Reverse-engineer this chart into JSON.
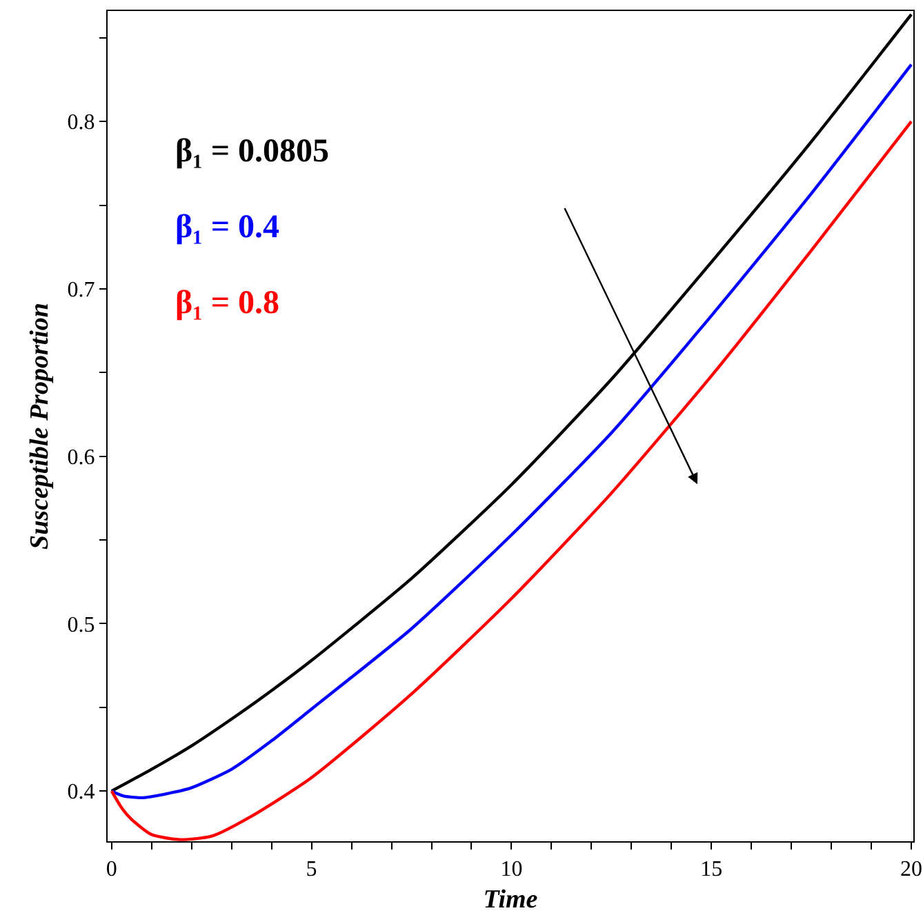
{
  "chart_data": {
    "type": "line",
    "xlabel": "Time",
    "ylabel": "Susceptible Proportion",
    "xlim": [
      -0.1,
      20.05
    ],
    "ylim": [
      0.37,
      0.866
    ],
    "xticks": [
      0,
      {
        "value": 1,
        "label": null
      },
      {
        "value": 2,
        "label": null
      },
      {
        "value": 3,
        "label": null
      },
      {
        "value": 4,
        "label": null
      },
      5,
      {
        "value": 6,
        "label": null
      },
      {
        "value": 7,
        "label": null
      },
      {
        "value": 8,
        "label": null
      },
      {
        "value": 9,
        "label": null
      },
      10,
      {
        "value": 11,
        "label": null
      },
      {
        "value": 12,
        "label": null
      },
      {
        "value": 13,
        "label": null
      },
      {
        "value": 14,
        "label": null
      },
      15,
      {
        "value": 16,
        "label": null
      },
      {
        "value": 17,
        "label": null
      },
      {
        "value": 18,
        "label": null
      },
      {
        "value": 19,
        "label": null
      },
      20
    ],
    "yticks": [
      0.4,
      {
        "value": 0.45,
        "label": null
      },
      0.5,
      {
        "value": 0.55,
        "label": null
      },
      0.6,
      {
        "value": 0.65,
        "label": null
      },
      0.7,
      {
        "value": 0.75,
        "label": null
      },
      0.8,
      {
        "value": 0.85,
        "label": null
      }
    ],
    "grid": false,
    "legend": false,
    "marker": "none",
    "line_style": "solid",
    "series": [
      {
        "name": "β₁ = 0.0805",
        "color": "#000000",
        "x": [
          0,
          1,
          2,
          3,
          4,
          5,
          7.5,
          10,
          12.5,
          15,
          17.5,
          20
        ],
        "values": [
          0.4,
          0.413,
          0.427,
          0.443,
          0.46,
          0.478,
          0.527,
          0.583,
          0.646,
          0.716,
          0.788,
          0.864
        ]
      },
      {
        "name": "β₁ = 0.4",
        "color": "#0000ff",
        "x": [
          0,
          0.3,
          0.75,
          1.3,
          2,
          3,
          4,
          5,
          7.5,
          10,
          12.5,
          15,
          17.5,
          20
        ],
        "values": [
          0.4,
          0.397,
          0.396,
          0.398,
          0.402,
          0.413,
          0.43,
          0.449,
          0.497,
          0.553,
          0.614,
          0.684,
          0.757,
          0.834
        ]
      },
      {
        "name": "β₁ = 0.8",
        "color": "#ff0000",
        "x": [
          0,
          0.25,
          0.5,
          1,
          1.7,
          2.5,
          3.5,
          5,
          7.5,
          10,
          12.5,
          15,
          17.5,
          20
        ],
        "values": [
          0.4,
          0.39,
          0.383,
          0.374,
          0.371,
          0.373,
          0.385,
          0.408,
          0.458,
          0.515,
          0.578,
          0.648,
          0.723,
          0.8
        ]
      }
    ]
  }
}
